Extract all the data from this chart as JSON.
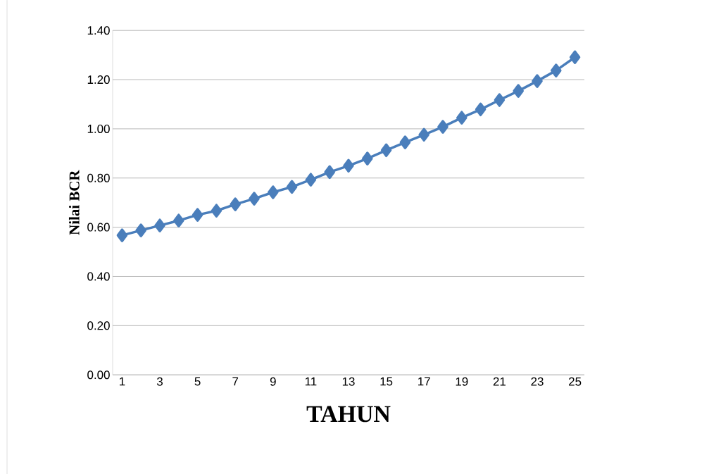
{
  "chart_data": {
    "type": "line",
    "xlabel": "TAHUN",
    "ylabel": "Nilai BCR",
    "categories": [
      "1",
      null,
      "3",
      null,
      "5",
      null,
      "7",
      null,
      "9",
      null,
      "11",
      null,
      "13",
      null,
      "15",
      null,
      "17",
      null,
      "19",
      null,
      "21",
      null,
      "23",
      null,
      "25"
    ],
    "values": [
      0.567,
      0.587,
      0.607,
      0.627,
      0.65,
      0.667,
      0.693,
      0.716,
      0.742,
      0.764,
      0.793,
      0.824,
      0.85,
      0.879,
      0.913,
      0.945,
      0.976,
      1.008,
      1.045,
      1.079,
      1.117,
      1.154,
      1.194,
      1.237,
      1.291
    ],
    "color": "#4a7ebb",
    "marker": "diamond",
    "line_style": "solid",
    "ylim": [
      0,
      1.4
    ],
    "yticks": [
      {
        "value": 0,
        "label": "0.00"
      },
      {
        "value": 0.2,
        "label": "0.20"
      },
      {
        "value": 0.4,
        "label": "0.40"
      },
      {
        "value": 0.6,
        "label": "0.60"
      },
      {
        "value": 0.8,
        "label": "0.80"
      },
      {
        "value": 1.0,
        "label": "1.00"
      },
      {
        "value": 1.2,
        "label": "1.20"
      },
      {
        "value": 1.4,
        "label": "1.40"
      }
    ],
    "grid": "y"
  }
}
